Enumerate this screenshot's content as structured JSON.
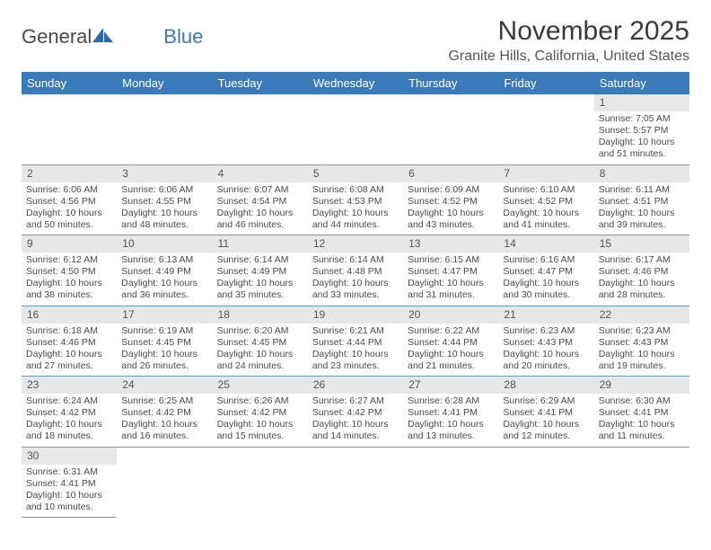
{
  "logo": {
    "text1": "General",
    "text2": "Blue"
  },
  "title": "November 2025",
  "location": "Granite Hills, California, United States",
  "colors": {
    "header_bg": "#3a7ab8",
    "header_fg": "#ffffff",
    "daynum_bg": "#e7e7e7",
    "cell_border": "#6a9bc7",
    "text": "#4a4a4a",
    "title": "#3a3a3a"
  },
  "weekdays": [
    "Sunday",
    "Monday",
    "Tuesday",
    "Wednesday",
    "Thursday",
    "Friday",
    "Saturday"
  ],
  "weeks": [
    [
      null,
      null,
      null,
      null,
      null,
      null,
      {
        "n": "1",
        "sr": "Sunrise: 7:05 AM",
        "ss": "Sunset: 5:57 PM",
        "d1": "Daylight: 10 hours",
        "d2": "and 51 minutes."
      }
    ],
    [
      {
        "n": "2",
        "sr": "Sunrise: 6:06 AM",
        "ss": "Sunset: 4:56 PM",
        "d1": "Daylight: 10 hours",
        "d2": "and 50 minutes."
      },
      {
        "n": "3",
        "sr": "Sunrise: 6:06 AM",
        "ss": "Sunset: 4:55 PM",
        "d1": "Daylight: 10 hours",
        "d2": "and 48 minutes."
      },
      {
        "n": "4",
        "sr": "Sunrise: 6:07 AM",
        "ss": "Sunset: 4:54 PM",
        "d1": "Daylight: 10 hours",
        "d2": "and 46 minutes."
      },
      {
        "n": "5",
        "sr": "Sunrise: 6:08 AM",
        "ss": "Sunset: 4:53 PM",
        "d1": "Daylight: 10 hours",
        "d2": "and 44 minutes."
      },
      {
        "n": "6",
        "sr": "Sunrise: 6:09 AM",
        "ss": "Sunset: 4:52 PM",
        "d1": "Daylight: 10 hours",
        "d2": "and 43 minutes."
      },
      {
        "n": "7",
        "sr": "Sunrise: 6:10 AM",
        "ss": "Sunset: 4:52 PM",
        "d1": "Daylight: 10 hours",
        "d2": "and 41 minutes."
      },
      {
        "n": "8",
        "sr": "Sunrise: 6:11 AM",
        "ss": "Sunset: 4:51 PM",
        "d1": "Daylight: 10 hours",
        "d2": "and 39 minutes."
      }
    ],
    [
      {
        "n": "9",
        "sr": "Sunrise: 6:12 AM",
        "ss": "Sunset: 4:50 PM",
        "d1": "Daylight: 10 hours",
        "d2": "and 38 minutes."
      },
      {
        "n": "10",
        "sr": "Sunrise: 6:13 AM",
        "ss": "Sunset: 4:49 PM",
        "d1": "Daylight: 10 hours",
        "d2": "and 36 minutes."
      },
      {
        "n": "11",
        "sr": "Sunrise: 6:14 AM",
        "ss": "Sunset: 4:49 PM",
        "d1": "Daylight: 10 hours",
        "d2": "and 35 minutes."
      },
      {
        "n": "12",
        "sr": "Sunrise: 6:14 AM",
        "ss": "Sunset: 4:48 PM",
        "d1": "Daylight: 10 hours",
        "d2": "and 33 minutes."
      },
      {
        "n": "13",
        "sr": "Sunrise: 6:15 AM",
        "ss": "Sunset: 4:47 PM",
        "d1": "Daylight: 10 hours",
        "d2": "and 31 minutes."
      },
      {
        "n": "14",
        "sr": "Sunrise: 6:16 AM",
        "ss": "Sunset: 4:47 PM",
        "d1": "Daylight: 10 hours",
        "d2": "and 30 minutes."
      },
      {
        "n": "15",
        "sr": "Sunrise: 6:17 AM",
        "ss": "Sunset: 4:46 PM",
        "d1": "Daylight: 10 hours",
        "d2": "and 28 minutes."
      }
    ],
    [
      {
        "n": "16",
        "sr": "Sunrise: 6:18 AM",
        "ss": "Sunset: 4:46 PM",
        "d1": "Daylight: 10 hours",
        "d2": "and 27 minutes."
      },
      {
        "n": "17",
        "sr": "Sunrise: 6:19 AM",
        "ss": "Sunset: 4:45 PM",
        "d1": "Daylight: 10 hours",
        "d2": "and 26 minutes."
      },
      {
        "n": "18",
        "sr": "Sunrise: 6:20 AM",
        "ss": "Sunset: 4:45 PM",
        "d1": "Daylight: 10 hours",
        "d2": "and 24 minutes."
      },
      {
        "n": "19",
        "sr": "Sunrise: 6:21 AM",
        "ss": "Sunset: 4:44 PM",
        "d1": "Daylight: 10 hours",
        "d2": "and 23 minutes."
      },
      {
        "n": "20",
        "sr": "Sunrise: 6:22 AM",
        "ss": "Sunset: 4:44 PM",
        "d1": "Daylight: 10 hours",
        "d2": "and 21 minutes."
      },
      {
        "n": "21",
        "sr": "Sunrise: 6:23 AM",
        "ss": "Sunset: 4:43 PM",
        "d1": "Daylight: 10 hours",
        "d2": "and 20 minutes."
      },
      {
        "n": "22",
        "sr": "Sunrise: 6:23 AM",
        "ss": "Sunset: 4:43 PM",
        "d1": "Daylight: 10 hours",
        "d2": "and 19 minutes."
      }
    ],
    [
      {
        "n": "23",
        "sr": "Sunrise: 6:24 AM",
        "ss": "Sunset: 4:42 PM",
        "d1": "Daylight: 10 hours",
        "d2": "and 18 minutes."
      },
      {
        "n": "24",
        "sr": "Sunrise: 6:25 AM",
        "ss": "Sunset: 4:42 PM",
        "d1": "Daylight: 10 hours",
        "d2": "and 16 minutes."
      },
      {
        "n": "25",
        "sr": "Sunrise: 6:26 AM",
        "ss": "Sunset: 4:42 PM",
        "d1": "Daylight: 10 hours",
        "d2": "and 15 minutes."
      },
      {
        "n": "26",
        "sr": "Sunrise: 6:27 AM",
        "ss": "Sunset: 4:42 PM",
        "d1": "Daylight: 10 hours",
        "d2": "and 14 minutes."
      },
      {
        "n": "27",
        "sr": "Sunrise: 6:28 AM",
        "ss": "Sunset: 4:41 PM",
        "d1": "Daylight: 10 hours",
        "d2": "and 13 minutes."
      },
      {
        "n": "28",
        "sr": "Sunrise: 6:29 AM",
        "ss": "Sunset: 4:41 PM",
        "d1": "Daylight: 10 hours",
        "d2": "and 12 minutes."
      },
      {
        "n": "29",
        "sr": "Sunrise: 6:30 AM",
        "ss": "Sunset: 4:41 PM",
        "d1": "Daylight: 10 hours",
        "d2": "and 11 minutes."
      }
    ],
    [
      {
        "n": "30",
        "sr": "Sunrise: 6:31 AM",
        "ss": "Sunset: 4:41 PM",
        "d1": "Daylight: 10 hours",
        "d2": "and 10 minutes."
      },
      null,
      null,
      null,
      null,
      null,
      null
    ]
  ]
}
